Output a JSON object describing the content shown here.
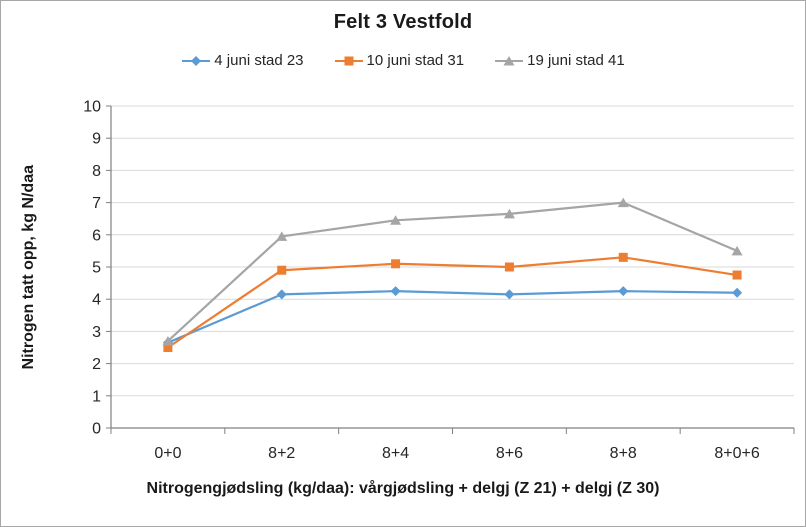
{
  "chart": {
    "title": "Felt 3 Vestfold",
    "y_axis_title": "Nitrogen tatt opp, kg N/daa",
    "x_axis_title": "Nitrogengjødsling (kg/daa): vårgjødsling + delgj (Z 21) + delgj (Z 30)"
  },
  "chart_data": {
    "type": "line",
    "title": "Felt 3 Vestfold",
    "xlabel": "Nitrogengjødsling (kg/daa): vårgjødsling + delgj (Z 21) + delgj (Z 30)",
    "ylabel": "Nitrogen tatt opp, kg N/daa",
    "categories": [
      "0+0",
      "8+2",
      "8+4",
      "8+6",
      "8+8",
      "8+0+6"
    ],
    "series": [
      {
        "name": "4 juni stad 23",
        "marker": "diamond",
        "color": "#5B9BD5",
        "values": [
          2.65,
          4.15,
          4.25,
          4.15,
          4.25,
          4.2
        ]
      },
      {
        "name": "10 juni stad 31",
        "marker": "square",
        "color": "#ED7D31",
        "values": [
          2.5,
          4.9,
          5.1,
          5.0,
          5.3,
          4.75
        ]
      },
      {
        "name": "19 juni stad 41",
        "marker": "triangle",
        "color": "#A5A5A5",
        "values": [
          2.7,
          5.95,
          6.45,
          6.65,
          7.0,
          5.5
        ]
      }
    ],
    "ylim": [
      0,
      10
    ],
    "y_ticks": [
      0,
      1,
      2,
      3,
      4,
      5,
      6,
      7,
      8,
      9,
      10
    ],
    "grid": "horizontal",
    "legend_position": "top",
    "colors": {
      "gridline": "#D9D9D9",
      "axis": "#808080",
      "tick_label": "#262626",
      "frame_border": "#A6A6A6"
    }
  }
}
